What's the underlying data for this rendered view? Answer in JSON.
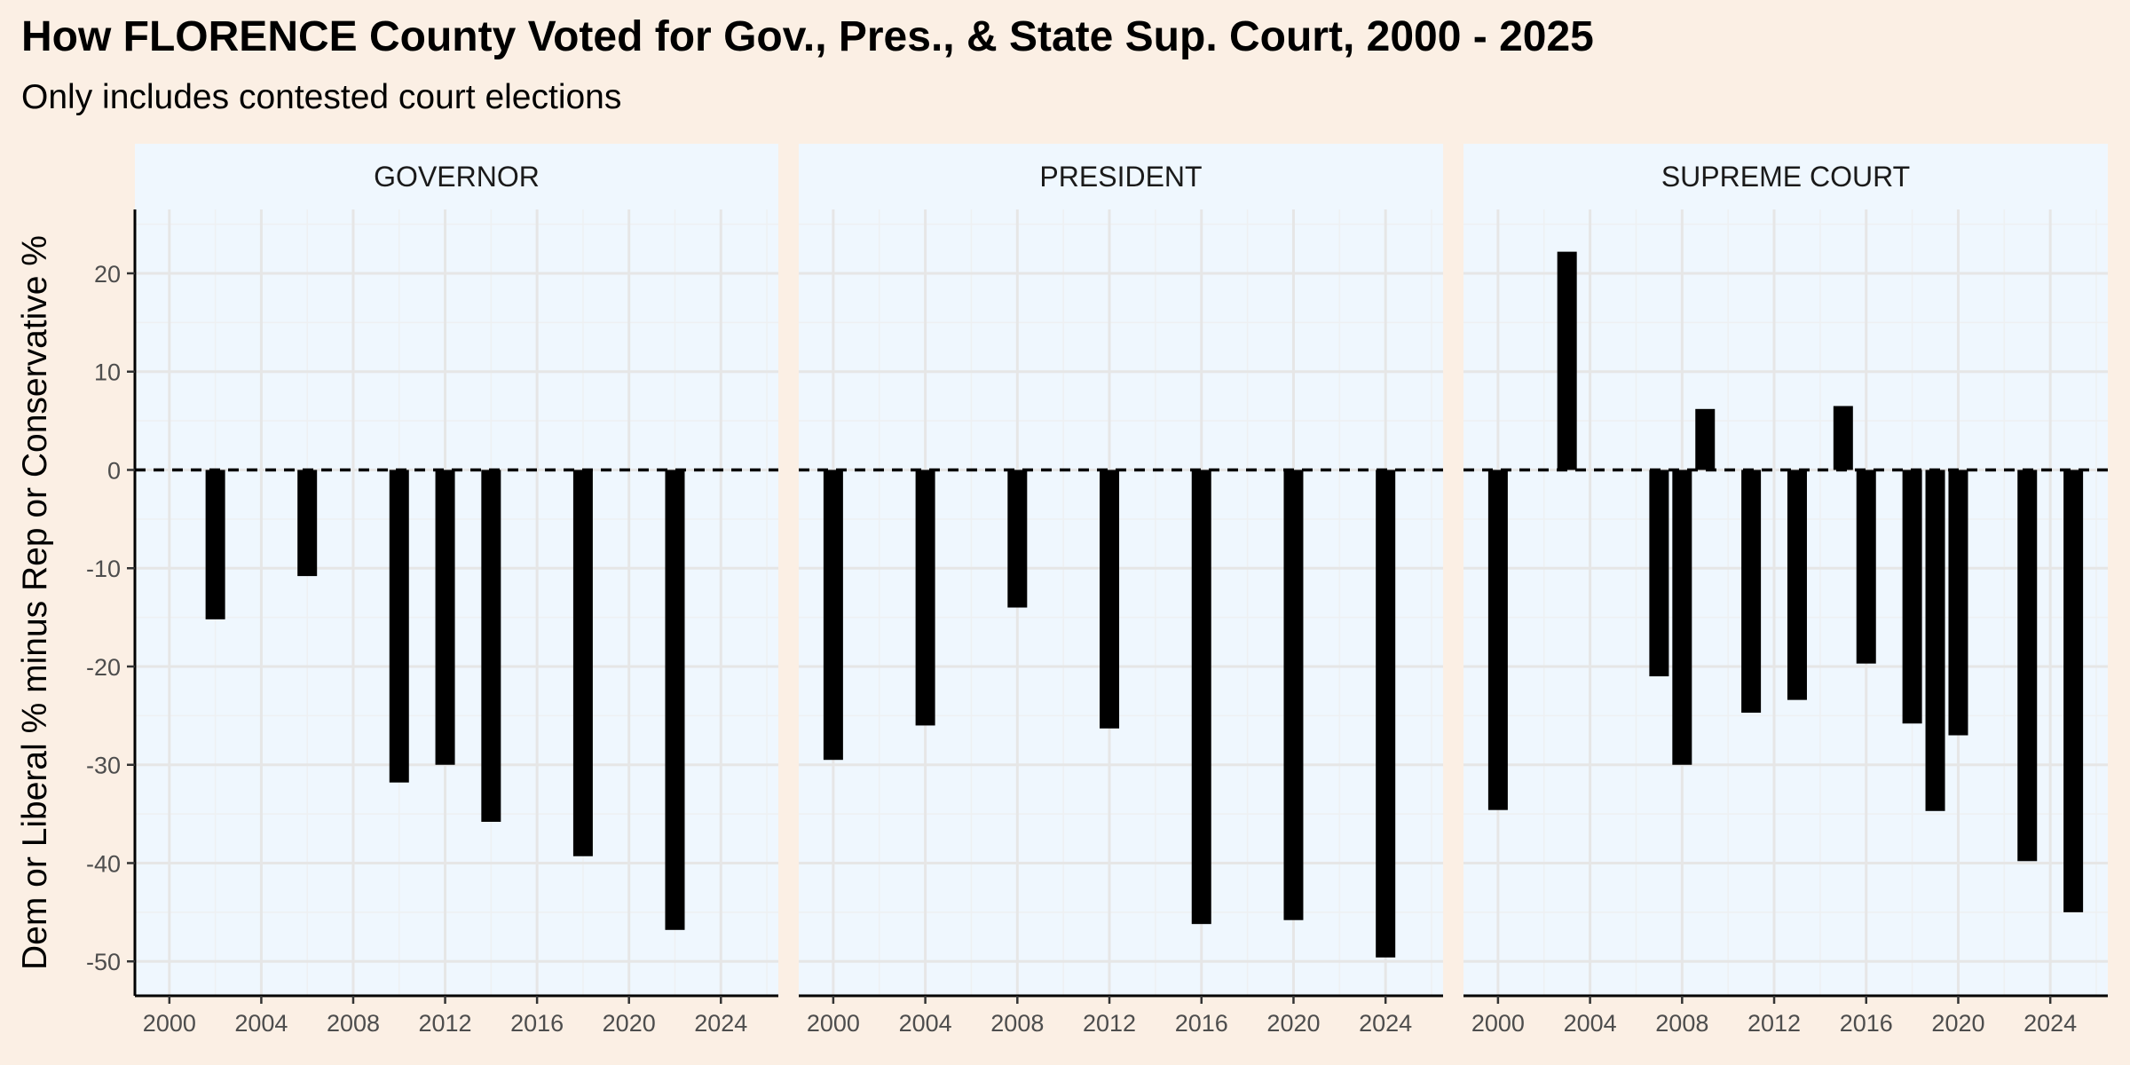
{
  "title": "How FLORENCE County Voted for Gov., Pres., & State Sup. Court, 2000 - 2025",
  "subtitle": "Only includes contested court elections",
  "colors": {
    "background": "#fbefe4",
    "panel": "#eff7fe",
    "strip": "#eff7fe",
    "bar": "#000000",
    "grid": "#e6e6e6",
    "grid_minor": "#eef0f2"
  },
  "chart_data": {
    "type": "bar",
    "title": "How FLORENCE County Voted for Gov., Pres., & State Sup. Court, 2000 - 2025",
    "subtitle": "Only includes contested court elections",
    "xlabel": "",
    "ylabel": "Dem or Liberal % minus Rep or Conservative %",
    "xlim": [
      1998.5,
      2026.5
    ],
    "ylim": [
      -53.5,
      26.5
    ],
    "x_ticks": [
      2000,
      2004,
      2008,
      2012,
      2016,
      2020,
      2024
    ],
    "y_ticks": [
      20,
      10,
      0,
      -10,
      -20,
      -30,
      -40,
      -50
    ],
    "reference_line": {
      "y": 0,
      "style": "dashed"
    },
    "grid": true,
    "legend": "none",
    "facets": [
      {
        "name": "GOVERNOR",
        "x": [
          2002,
          2006,
          2010,
          2012,
          2014,
          2018,
          2022
        ],
        "values": [
          -15.2,
          -10.8,
          -31.8,
          -30.0,
          -35.8,
          -39.3,
          -46.8
        ]
      },
      {
        "name": "PRESIDENT",
        "x": [
          2000,
          2004,
          2008,
          2012,
          2016,
          2020,
          2024
        ],
        "values": [
          -29.5,
          -26.0,
          -14.0,
          -26.3,
          -46.2,
          -45.8,
          -49.6
        ]
      },
      {
        "name": "SUPREME COURT",
        "x": [
          2000,
          2003,
          2007,
          2008,
          2009,
          2011,
          2013,
          2015,
          2016,
          2018,
          2019,
          2020,
          2023,
          2025
        ],
        "values": [
          -34.6,
          22.2,
          -21.0,
          -30.0,
          6.2,
          -24.7,
          -23.4,
          6.5,
          -19.7,
          -25.8,
          -34.7,
          -27.0,
          -39.8,
          -45.0
        ]
      }
    ]
  }
}
